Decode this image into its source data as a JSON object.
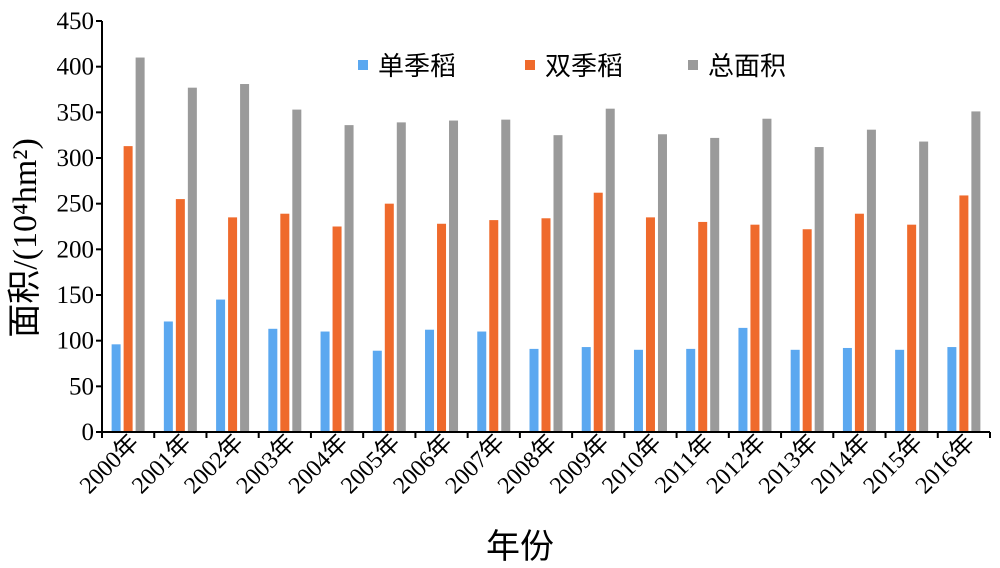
{
  "chart_data": {
    "type": "bar",
    "xlabel": "年份",
    "ylabel": "面积/(10⁴hm²)",
    "ylim": [
      0,
      450
    ],
    "yticks": [
      0,
      50,
      100,
      150,
      200,
      250,
      300,
      350,
      400,
      450
    ],
    "grid": false,
    "legend_position": "top-right",
    "categories": [
      "2000年",
      "2001年",
      "2002年",
      "2003年",
      "2004年",
      "2005年",
      "2006年",
      "2007年",
      "2008年",
      "2009年",
      "2010年",
      "2011年",
      "2012年",
      "2013年",
      "2014年",
      "2015年",
      "2016年"
    ],
    "series": [
      {
        "name": "单季稻",
        "color": "#5ba8f0",
        "values": [
          96,
          121,
          145,
          113,
          110,
          89,
          112,
          110,
          91,
          93,
          90,
          91,
          114,
          90,
          92,
          90,
          93
        ]
      },
      {
        "name": "双季稻",
        "color": "#ef6a2c",
        "values": [
          313,
          255,
          235,
          239,
          225,
          250,
          228,
          232,
          234,
          262,
          235,
          230,
          227,
          222,
          239,
          227,
          259
        ]
      },
      {
        "name": "总面积",
        "color": "#9a9a9a",
        "values": [
          410,
          377,
          381,
          353,
          336,
          339,
          341,
          342,
          325,
          354,
          326,
          322,
          343,
          312,
          331,
          318,
          351
        ]
      }
    ]
  }
}
